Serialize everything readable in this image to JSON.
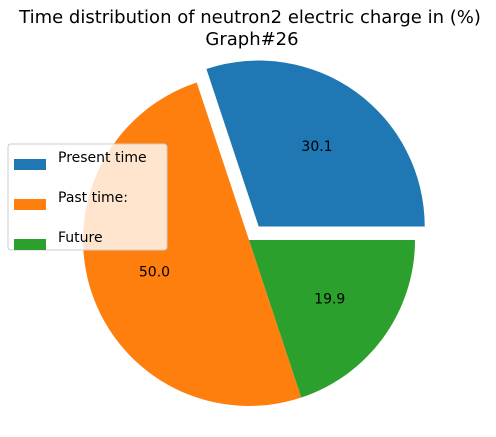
{
  "chart_data": {
    "type": "pie",
    "title": "Time distribution of neutron2 electric charge in (%)",
    "subtitle": "Graph#26",
    "labels": [
      "Present time",
      "Past time:",
      "Future"
    ],
    "values": [
      30.1,
      50.0,
      19.9
    ],
    "display_labels": [
      "30.1",
      "50.0",
      "19.9"
    ],
    "colors": [
      "#1f77b4",
      "#ff7f0e",
      "#2ca02c"
    ],
    "explode": [
      0.1,
      0,
      0
    ],
    "start_angle_deg": 0,
    "direction": "counterclockwise",
    "legend_position": "left"
  }
}
